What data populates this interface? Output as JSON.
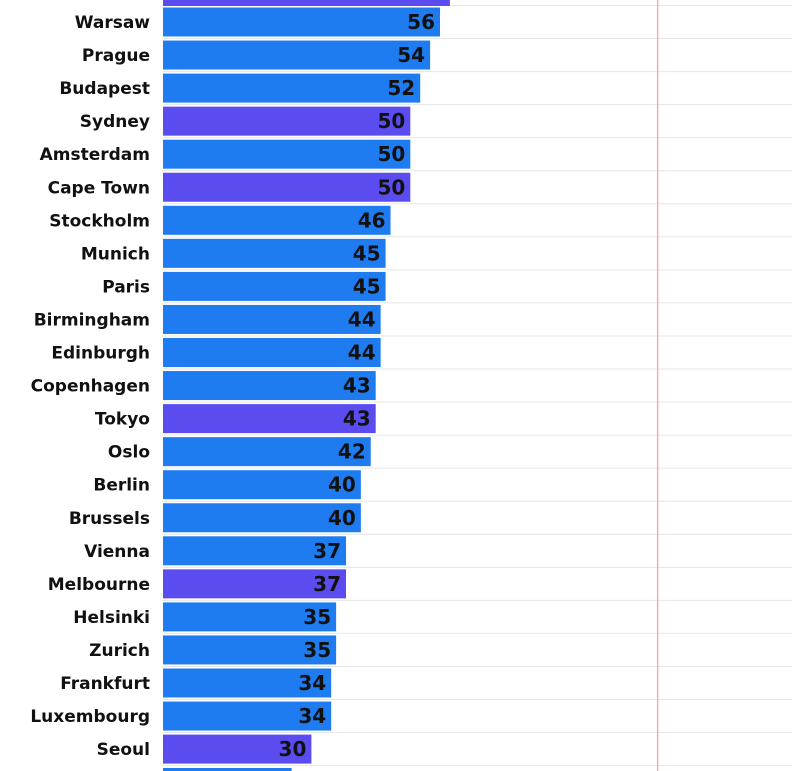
{
  "chart_data": {
    "type": "bar",
    "orientation": "horizontal",
    "title": "",
    "xlabel": "",
    "ylabel": "",
    "categories": [
      "Warsaw",
      "Prague",
      "Budapest",
      "Sydney",
      "Amsterdam",
      "Cape Town",
      "Stockholm",
      "Munich",
      "Paris",
      "Birmingham",
      "Edinburgh",
      "Copenhagen",
      "Tokyo",
      "Oslo",
      "Berlin",
      "Brussels",
      "Vienna",
      "Melbourne",
      "Helsinki",
      "Zurich",
      "Frankfurt",
      "Luxembourg",
      "Seoul"
    ],
    "values": [
      56,
      54,
      52,
      50,
      50,
      50,
      46,
      45,
      45,
      44,
      44,
      43,
      43,
      42,
      40,
      40,
      37,
      37,
      35,
      35,
      34,
      34,
      30
    ],
    "highlighted": [
      "Sydney",
      "Cape Town",
      "Tokyo",
      "Melbourne",
      "Seoul"
    ],
    "xlim": [
      0,
      160
    ],
    "reference_line": 100,
    "grid": true,
    "colors": {
      "bar": "#1e7cf0",
      "highlight": "#5b4cf0",
      "grid": "#e6e6e6",
      "reference_line": "#e8b4b4",
      "text": "#111111"
    }
  }
}
